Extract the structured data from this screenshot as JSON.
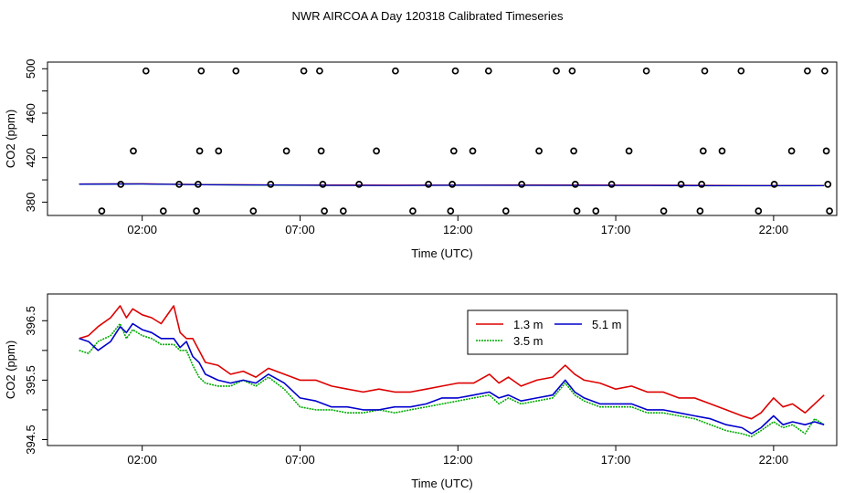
{
  "title": "NWR AIRCOA A  Day 120318  Calibrated Timeseries",
  "chart_data": [
    {
      "type": "scatter",
      "panel": "top",
      "xlabel": "Time (UTC)",
      "ylabel": "CO2 (ppm)",
      "xlim": [
        -1.0,
        24.0
      ],
      "ylim": [
        368.0,
        506.0
      ],
      "xticks": [
        2,
        7,
        12,
        17,
        22
      ],
      "xtick_labels": [
        "02:00",
        "07:00",
        "12:00",
        "17:00",
        "22:00"
      ],
      "yticks": [
        380,
        420,
        460,
        500
      ],
      "ytick_labels": [
        "380",
        "420",
        "460",
        "500"
      ],
      "yminor_ticks": [
        400,
        440,
        480
      ],
      "calibration_points": [
        {
          "x": 0.72,
          "y": 372
        },
        {
          "x": 1.32,
          "y": 396
        },
        {
          "x": 1.72,
          "y": 426
        },
        {
          "x": 2.12,
          "y": 498
        },
        {
          "x": 2.67,
          "y": 372
        },
        {
          "x": 3.17,
          "y": 396
        },
        {
          "x": 3.72,
          "y": 372
        },
        {
          "x": 3.77,
          "y": 396
        },
        {
          "x": 3.82,
          "y": 426
        },
        {
          "x": 3.87,
          "y": 498
        },
        {
          "x": 4.42,
          "y": 426
        },
        {
          "x": 4.97,
          "y": 498
        },
        {
          "x": 5.52,
          "y": 372
        },
        {
          "x": 6.07,
          "y": 396
        },
        {
          "x": 6.57,
          "y": 426
        },
        {
          "x": 7.12,
          "y": 498
        },
        {
          "x": 7.62,
          "y": 498
        },
        {
          "x": 7.67,
          "y": 426
        },
        {
          "x": 7.72,
          "y": 396
        },
        {
          "x": 7.77,
          "y": 372
        },
        {
          "x": 8.37,
          "y": 372
        },
        {
          "x": 8.87,
          "y": 396
        },
        {
          "x": 9.42,
          "y": 426
        },
        {
          "x": 10.02,
          "y": 498
        },
        {
          "x": 10.57,
          "y": 372
        },
        {
          "x": 11.07,
          "y": 396
        },
        {
          "x": 11.77,
          "y": 372
        },
        {
          "x": 11.82,
          "y": 396
        },
        {
          "x": 11.87,
          "y": 426
        },
        {
          "x": 11.92,
          "y": 498
        },
        {
          "x": 12.47,
          "y": 426
        },
        {
          "x": 12.97,
          "y": 498
        },
        {
          "x": 13.52,
          "y": 372
        },
        {
          "x": 14.02,
          "y": 396
        },
        {
          "x": 14.57,
          "y": 426
        },
        {
          "x": 15.12,
          "y": 498
        },
        {
          "x": 15.62,
          "y": 498
        },
        {
          "x": 15.67,
          "y": 426
        },
        {
          "x": 15.72,
          "y": 396
        },
        {
          "x": 15.77,
          "y": 372
        },
        {
          "x": 16.37,
          "y": 372
        },
        {
          "x": 16.87,
          "y": 396
        },
        {
          "x": 17.42,
          "y": 426
        },
        {
          "x": 17.97,
          "y": 498
        },
        {
          "x": 18.52,
          "y": 372
        },
        {
          "x": 19.07,
          "y": 396
        },
        {
          "x": 19.67,
          "y": 372
        },
        {
          "x": 19.72,
          "y": 396
        },
        {
          "x": 19.77,
          "y": 426
        },
        {
          "x": 19.82,
          "y": 498
        },
        {
          "x": 20.37,
          "y": 426
        },
        {
          "x": 20.97,
          "y": 498
        },
        {
          "x": 21.52,
          "y": 372
        },
        {
          "x": 22.02,
          "y": 396
        },
        {
          "x": 22.57,
          "y": 426
        },
        {
          "x": 23.07,
          "y": 498
        },
        {
          "x": 23.62,
          "y": 498
        },
        {
          "x": 23.67,
          "y": 426
        },
        {
          "x": 23.72,
          "y": 396
        },
        {
          "x": 23.77,
          "y": 372
        }
      ],
      "lines": [
        {
          "name": "1.3 m",
          "color": "#dd0000",
          "x": [
            0,
            2,
            4,
            6,
            8,
            10,
            12,
            14,
            16,
            18,
            20,
            22,
            23.6
          ],
          "values": [
            396.3,
            396.5,
            395.8,
            395.5,
            395.4,
            395.3,
            395.4,
            395.5,
            395.4,
            395.3,
            395.1,
            394.9,
            395.0
          ]
        },
        {
          "name": "3.5 m",
          "color": "#00aa00",
          "x": [
            0,
            2,
            4,
            6,
            8,
            10,
            12,
            14,
            16,
            18,
            20,
            22,
            23.6
          ],
          "values": [
            396.2,
            396.3,
            395.6,
            395.3,
            395.0,
            395.0,
            395.1,
            395.1,
            395.0,
            395.0,
            394.7,
            394.7,
            394.8
          ]
        },
        {
          "name": "5.1 m",
          "color": "#0000cc",
          "x": [
            0,
            2,
            4,
            6,
            8,
            10,
            12,
            14,
            16,
            18,
            20,
            22,
            23.6
          ],
          "values": [
            396.2,
            396.3,
            395.6,
            395.4,
            395.1,
            395.0,
            395.2,
            395.1,
            395.1,
            395.0,
            394.8,
            394.8,
            394.8
          ]
        }
      ]
    },
    {
      "type": "line",
      "panel": "bottom",
      "xlabel": "Time (UTC)",
      "ylabel": "CO2 (ppm)",
      "xlim": [
        -1.0,
        24.0
      ],
      "ylim": [
        394.4,
        396.95
      ],
      "xticks": [
        2,
        7,
        12,
        17,
        22
      ],
      "xtick_labels": [
        "02:00",
        "07:00",
        "12:00",
        "17:00",
        "22:00"
      ],
      "yticks": [
        394.5,
        395.5,
        396.5
      ],
      "ytick_labels": [
        "394.5",
        "395.5",
        "396.5"
      ],
      "yminor_ticks": [
        395.0,
        396.0
      ],
      "legend": {
        "position": "top-center",
        "entries": [
          "1.3 m",
          "5.1 m",
          "3.5 m"
        ]
      },
      "series": [
        {
          "name": "1.3 m",
          "color": "#dd0000",
          "line_style": "solid",
          "x": [
            0.0,
            0.3,
            0.6,
            1.0,
            1.3,
            1.5,
            1.7,
            2.0,
            2.3,
            2.6,
            3.0,
            3.2,
            3.4,
            3.6,
            3.8,
            4.0,
            4.4,
            4.8,
            5.2,
            5.6,
            6.0,
            6.5,
            7.0,
            7.5,
            8.0,
            8.5,
            9.0,
            9.5,
            10.0,
            10.5,
            11.0,
            11.5,
            12.0,
            12.5,
            13.0,
            13.3,
            13.6,
            14.0,
            14.5,
            15.0,
            15.4,
            15.7,
            16.0,
            16.5,
            17.0,
            17.5,
            18.0,
            18.5,
            19.0,
            19.5,
            20.0,
            20.5,
            21.0,
            21.3,
            21.6,
            22.0,
            22.3,
            22.6,
            23.0,
            23.3,
            23.6
          ],
          "values": [
            396.2,
            396.25,
            396.4,
            396.55,
            396.75,
            396.55,
            396.7,
            396.6,
            396.55,
            396.45,
            396.75,
            396.3,
            396.2,
            396.2,
            396.0,
            395.8,
            395.75,
            395.6,
            395.65,
            395.55,
            395.7,
            395.6,
            395.5,
            395.5,
            395.4,
            395.35,
            395.3,
            395.35,
            395.3,
            395.3,
            395.35,
            395.4,
            395.45,
            395.45,
            395.6,
            395.45,
            395.55,
            395.4,
            395.5,
            395.55,
            395.75,
            395.6,
            395.5,
            395.45,
            395.35,
            395.4,
            395.3,
            395.3,
            395.2,
            395.2,
            395.1,
            395.0,
            394.9,
            394.85,
            394.95,
            395.2,
            395.05,
            395.1,
            394.95,
            395.1,
            395.25
          ]
        },
        {
          "name": "5.1 m",
          "color": "#0000cc",
          "line_style": "solid",
          "x": [
            0.0,
            0.3,
            0.6,
            1.0,
            1.3,
            1.5,
            1.7,
            2.0,
            2.3,
            2.6,
            3.0,
            3.2,
            3.4,
            3.6,
            3.8,
            4.0,
            4.4,
            4.8,
            5.2,
            5.6,
            6.0,
            6.5,
            7.0,
            7.5,
            8.0,
            8.5,
            9.0,
            9.5,
            10.0,
            10.5,
            11.0,
            11.5,
            12.0,
            12.5,
            13.0,
            13.3,
            13.6,
            14.0,
            14.5,
            15.0,
            15.4,
            15.7,
            16.0,
            16.5,
            17.0,
            17.5,
            18.0,
            18.5,
            19.0,
            19.5,
            20.0,
            20.5,
            21.0,
            21.3,
            21.6,
            22.0,
            22.3,
            22.6,
            23.0,
            23.3,
            23.6
          ],
          "values": [
            396.2,
            396.15,
            396.0,
            396.15,
            396.4,
            396.3,
            396.45,
            396.35,
            396.3,
            396.2,
            396.2,
            396.05,
            396.15,
            395.9,
            395.8,
            395.6,
            395.5,
            395.45,
            395.5,
            395.45,
            395.6,
            395.45,
            395.2,
            395.15,
            395.05,
            395.05,
            395.0,
            395.0,
            395.05,
            395.05,
            395.1,
            395.2,
            395.2,
            395.25,
            395.3,
            395.2,
            395.25,
            395.15,
            395.2,
            395.25,
            395.5,
            395.3,
            395.2,
            395.1,
            395.1,
            395.1,
            395.0,
            395.0,
            394.95,
            394.9,
            394.85,
            394.75,
            394.7,
            394.6,
            394.7,
            394.9,
            394.75,
            394.8,
            394.75,
            394.8,
            394.75
          ]
        },
        {
          "name": "3.5 m",
          "color": "#00aa00",
          "line_style": "dotted",
          "x": [
            0.0,
            0.3,
            0.6,
            1.0,
            1.3,
            1.5,
            1.7,
            2.0,
            2.3,
            2.6,
            3.0,
            3.2,
            3.4,
            3.6,
            3.8,
            4.0,
            4.4,
            4.8,
            5.2,
            5.6,
            6.0,
            6.5,
            7.0,
            7.5,
            8.0,
            8.5,
            9.0,
            9.5,
            10.0,
            10.5,
            11.0,
            11.5,
            12.0,
            12.5,
            13.0,
            13.3,
            13.6,
            14.0,
            14.5,
            15.0,
            15.4,
            15.7,
            16.0,
            16.5,
            17.0,
            17.5,
            18.0,
            18.5,
            19.0,
            19.5,
            20.0,
            20.5,
            21.0,
            21.3,
            21.6,
            22.0,
            22.3,
            22.6,
            23.0,
            23.3,
            23.6
          ],
          "values": [
            396.0,
            395.95,
            396.15,
            396.25,
            396.45,
            396.2,
            396.35,
            396.25,
            396.2,
            396.1,
            396.1,
            396.0,
            396.0,
            395.75,
            395.55,
            395.45,
            395.4,
            395.4,
            395.5,
            395.4,
            395.55,
            395.35,
            395.05,
            395.0,
            395.0,
            394.95,
            394.95,
            395.0,
            394.95,
            395.0,
            395.05,
            395.1,
            395.15,
            395.2,
            395.25,
            395.1,
            395.2,
            395.1,
            395.15,
            395.2,
            395.45,
            395.25,
            395.15,
            395.05,
            395.05,
            395.05,
            394.95,
            394.95,
            394.9,
            394.85,
            394.75,
            394.65,
            394.6,
            394.55,
            394.65,
            394.8,
            394.7,
            394.75,
            394.6,
            394.85,
            394.75
          ]
        }
      ]
    }
  ]
}
